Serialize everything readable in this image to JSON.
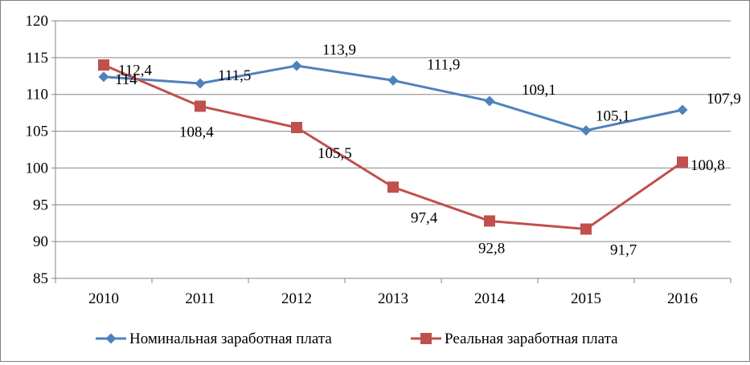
{
  "chart_data": {
    "type": "line",
    "title": "",
    "xlabel": "",
    "ylabel": "",
    "categories": [
      "2010",
      "2011",
      "2012",
      "2013",
      "2014",
      "2015",
      "2016"
    ],
    "ylim": [
      85,
      120
    ],
    "yticks": [
      85,
      90,
      95,
      100,
      105,
      110,
      115,
      120
    ],
    "grid": "horizontal",
    "legend": "bottom",
    "series": [
      {
        "name": "Номинальная заработная плата",
        "color": "#4f81bd",
        "marker": "diamond",
        "values": [
          112.4,
          111.5,
          113.9,
          111.9,
          109.1,
          105.1,
          107.9
        ],
        "labels": [
          "112,4",
          "111,5",
          "113,9",
          "111,9",
          "109,1",
          "105,1",
          "107,9"
        ]
      },
      {
        "name": "Реальная заработная плата",
        "color": "#c0504d",
        "marker": "square",
        "values": [
          114,
          108.4,
          105.5,
          97.4,
          92.8,
          91.7,
          100.8
        ],
        "labels": [
          "114",
          "108,4",
          "105,5",
          "97,4",
          "92,8",
          "91,7",
          "100,8"
        ]
      }
    ]
  }
}
